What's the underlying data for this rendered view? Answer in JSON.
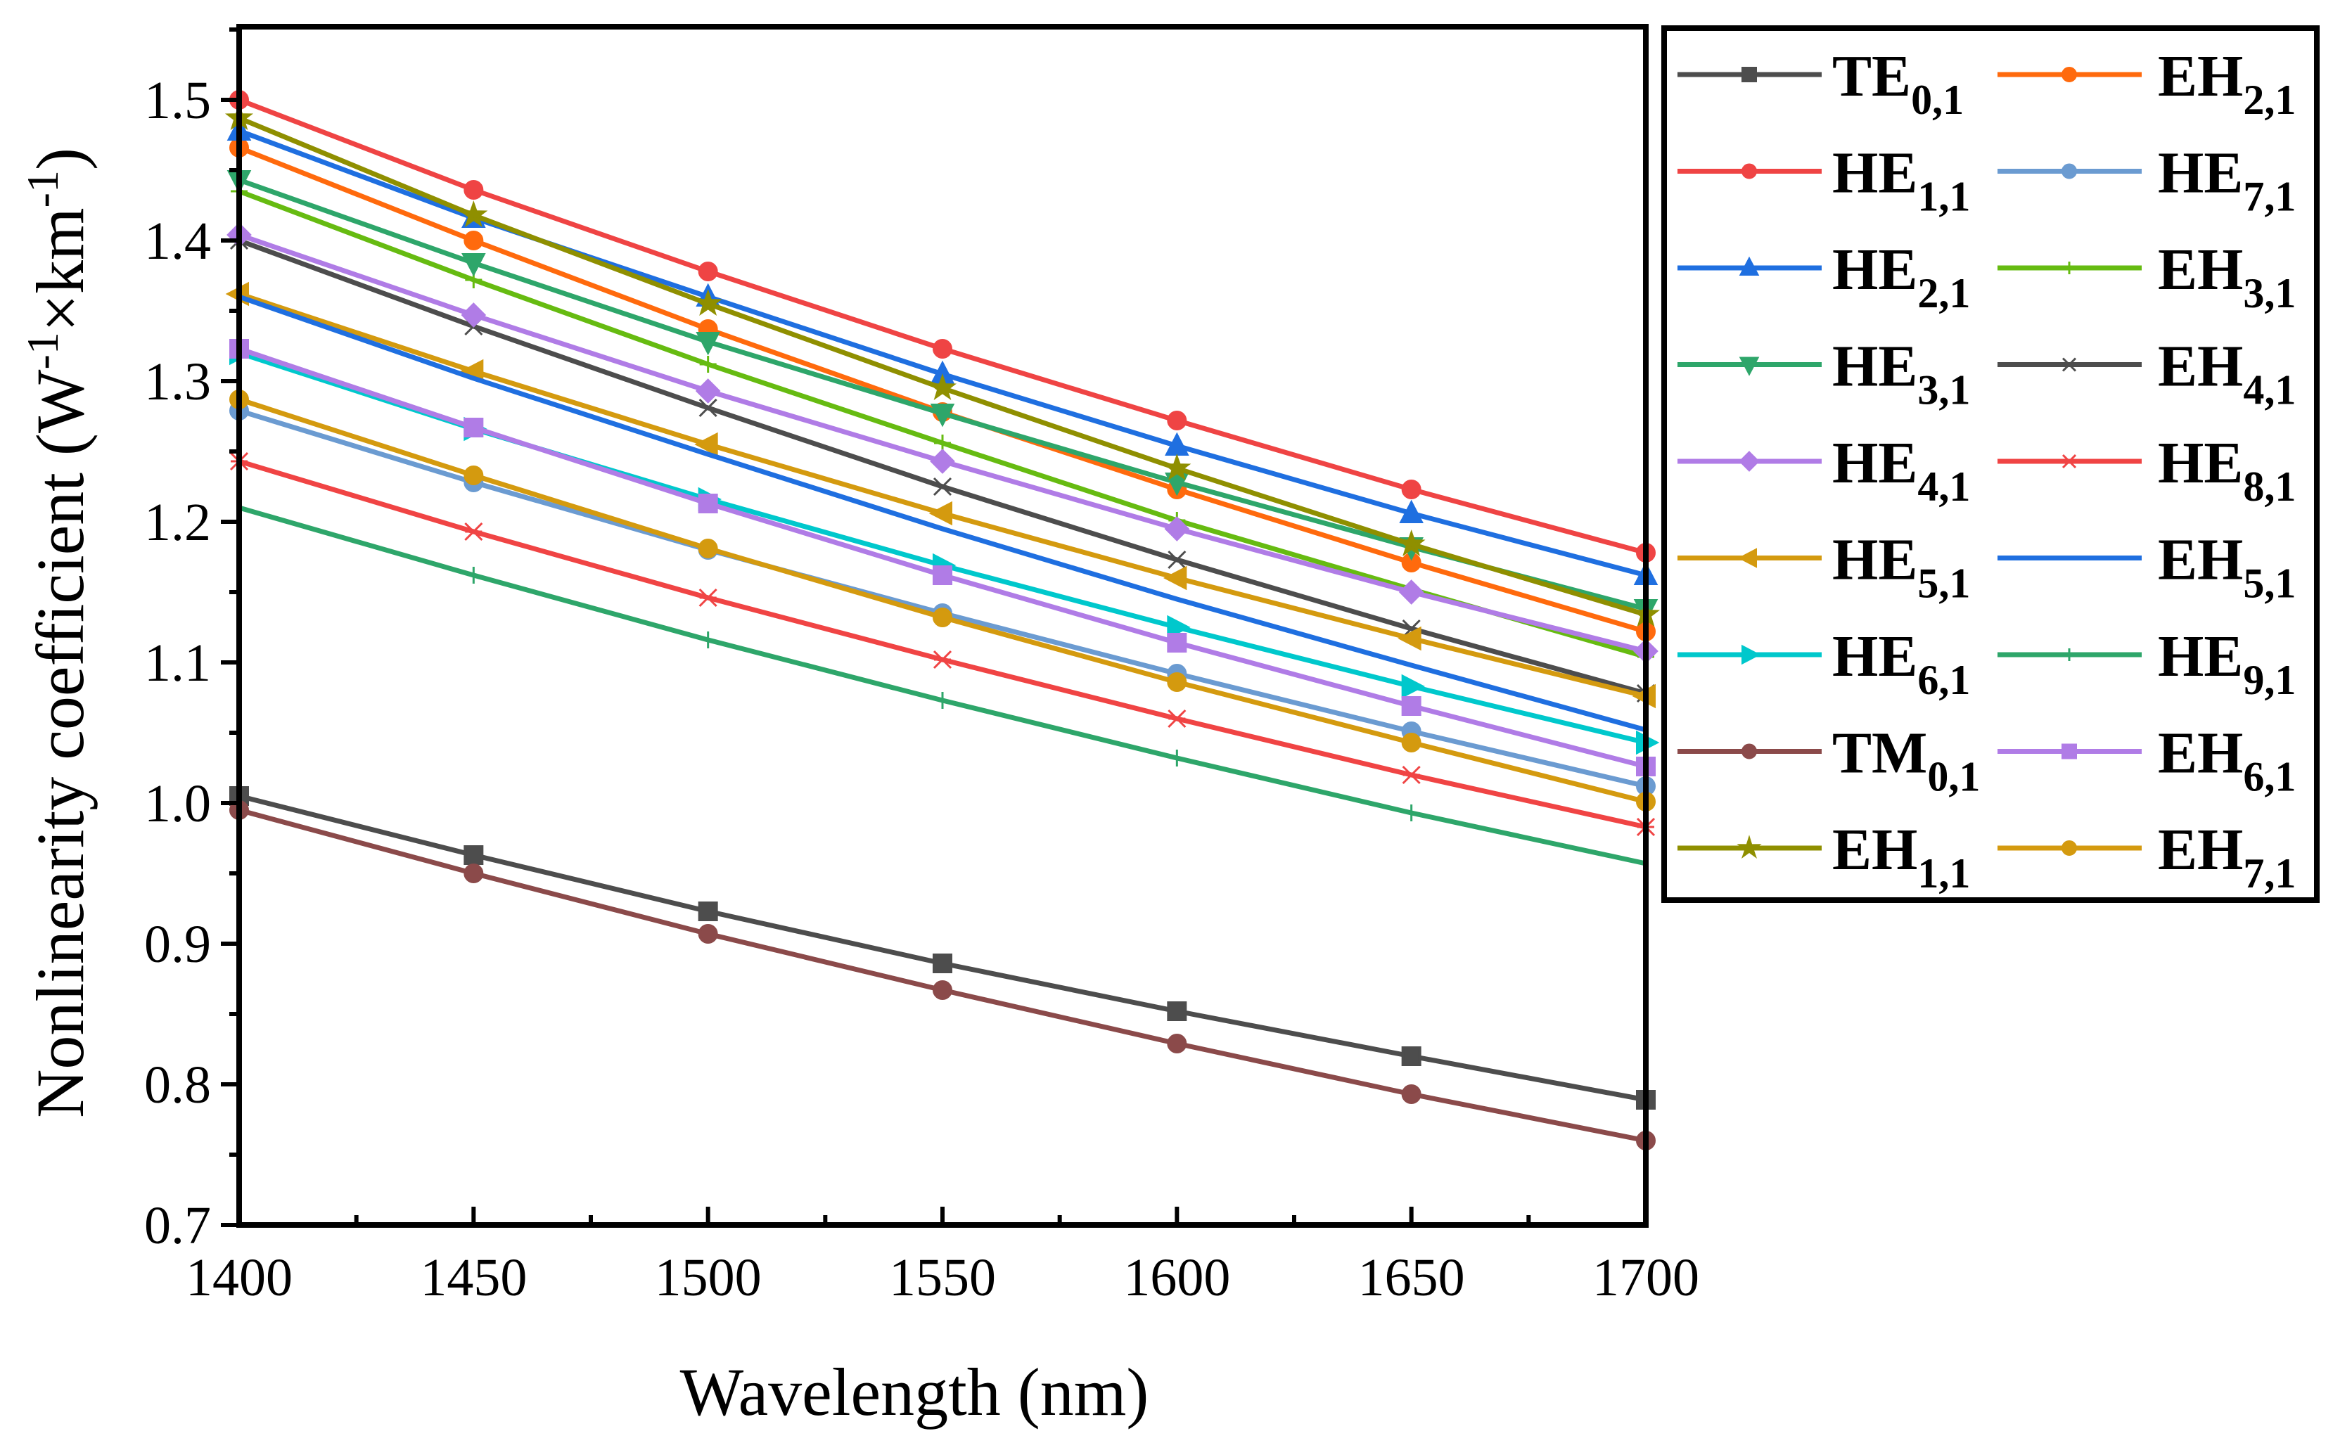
{
  "chart_data": {
    "type": "line",
    "xlabel": "Wavelength (nm)",
    "ylabel": "Nonlinearity coefficient (W-1×km-1)",
    "ylabel_parts": {
      "main": "Nonlinearity coefficient (W",
      "sup1": "-1",
      "mid": "×km",
      "sup2": "-1",
      "end": ")"
    },
    "xlim": [
      1400,
      1700
    ],
    "ylim": [
      0.7,
      1.55
    ],
    "xticks": [
      1400,
      1450,
      1500,
      1550,
      1600,
      1650,
      1700
    ],
    "yticks": [
      "0.7",
      "0.8",
      "0.9",
      "1.0",
      "1.1",
      "1.2",
      "1.3",
      "1.4",
      "1.5"
    ],
    "x": [
      1400,
      1450,
      1500,
      1550,
      1600,
      1650,
      1700
    ],
    "legend_placement": "outside-right",
    "series": [
      {
        "name": "TE0,1",
        "base": "TE",
        "sub": "0,1",
        "color": "#4d4d4d",
        "marker": "square",
        "values": [
          1.005,
          0.963,
          0.923,
          0.886,
          0.852,
          0.82,
          0.789
        ]
      },
      {
        "name": "EH2,1",
        "base": "EH",
        "sub": "2,1",
        "color": "#ff6a0d",
        "marker": "circle",
        "values": [
          1.466,
          1.4,
          1.337,
          1.278,
          1.223,
          1.171,
          1.122
        ]
      },
      {
        "name": "HE1,1",
        "base": "HE",
        "sub": "1,1",
        "color": "#ef4444",
        "marker": "circle",
        "values": [
          1.5,
          1.436,
          1.378,
          1.323,
          1.272,
          1.223,
          1.178
        ]
      },
      {
        "name": "HE7,1",
        "base": "HE",
        "sub": "7,1",
        "color": "#6b9bd1",
        "marker": "circle",
        "values": [
          1.279,
          1.228,
          1.18,
          1.135,
          1.092,
          1.051,
          1.012
        ]
      },
      {
        "name": "HE2,1",
        "base": "HE",
        "sub": "2,1",
        "color": "#1f6fe0",
        "marker": "triangle-up",
        "values": [
          1.478,
          1.416,
          1.36,
          1.305,
          1.254,
          1.206,
          1.162
        ]
      },
      {
        "name": "EH3,1",
        "base": "EH",
        "sub": "3,1",
        "color": "#66bb11",
        "marker": "plus",
        "values": [
          1.435,
          1.372,
          1.312,
          1.256,
          1.201,
          1.152,
          1.104
        ]
      },
      {
        "name": "HE3,1",
        "base": "HE",
        "sub": "3,1",
        "color": "#2ea66a",
        "marker": "triangle-down",
        "values": [
          1.443,
          1.384,
          1.328,
          1.277,
          1.228,
          1.182,
          1.138
        ]
      },
      {
        "name": "EH4,1",
        "base": "EH",
        "sub": "4,1",
        "color": "#4d4d4d",
        "marker": "x",
        "values": [
          1.4,
          1.339,
          1.281,
          1.225,
          1.173,
          1.124,
          1.078
        ]
      },
      {
        "name": "HE4,1",
        "base": "HE",
        "sub": "4,1",
        "color": "#b07ce6",
        "marker": "diamond",
        "values": [
          1.404,
          1.347,
          1.293,
          1.243,
          1.195,
          1.15,
          1.108
        ]
      },
      {
        "name": "HE8,1",
        "base": "HE",
        "sub": "8,1",
        "color": "#f04444",
        "marker": "asterisk",
        "values": [
          1.243,
          1.193,
          1.146,
          1.102,
          1.06,
          1.02,
          0.983
        ]
      },
      {
        "name": "HE5,1",
        "base": "HE",
        "sub": "5,1",
        "color": "#d49a0f",
        "marker": "triangle-left",
        "values": [
          1.362,
          1.307,
          1.255,
          1.206,
          1.16,
          1.117,
          1.076
        ]
      },
      {
        "name": "EH5,1",
        "base": "EH",
        "sub": "5,1",
        "color": "#1f6fe0",
        "marker": "none",
        "values": [
          1.36,
          1.302,
          1.248,
          1.195,
          1.145,
          1.098,
          1.052
        ]
      },
      {
        "name": "HE6,1",
        "base": "HE",
        "sub": "6,1",
        "color": "#00c8cc",
        "marker": "triangle-right",
        "values": [
          1.32,
          1.266,
          1.216,
          1.169,
          1.125,
          1.083,
          1.043
        ]
      },
      {
        "name": "HE9,1",
        "base": "HE",
        "sub": "9,1",
        "color": "#2ea66a",
        "marker": "dash",
        "values": [
          1.21,
          1.162,
          1.116,
          1.073,
          1.032,
          0.993,
          0.957
        ]
      },
      {
        "name": "TM0,1",
        "base": "TM",
        "sub": "0,1",
        "color": "#8b4a4a",
        "marker": "circle",
        "values": [
          0.995,
          0.95,
          0.907,
          0.867,
          0.829,
          0.793,
          0.76
        ]
      },
      {
        "name": "EH6,1",
        "base": "EH",
        "sub": "6,1",
        "color": "#b07ce6",
        "marker": "square",
        "values": [
          1.323,
          1.267,
          1.213,
          1.162,
          1.114,
          1.069,
          1.026
        ]
      },
      {
        "name": "EH1,1",
        "base": "EH",
        "sub": "1,1",
        "color": "#8f8f00",
        "marker": "star",
        "values": [
          1.487,
          1.418,
          1.355,
          1.295,
          1.238,
          1.184,
          1.134
        ]
      },
      {
        "name": "EH7,1",
        "base": "EH",
        "sub": "7,1",
        "color": "#d49a0f",
        "marker": "circle",
        "values": [
          1.287,
          1.233,
          1.181,
          1.132,
          1.086,
          1.043,
          1.001
        ]
      }
    ]
  }
}
